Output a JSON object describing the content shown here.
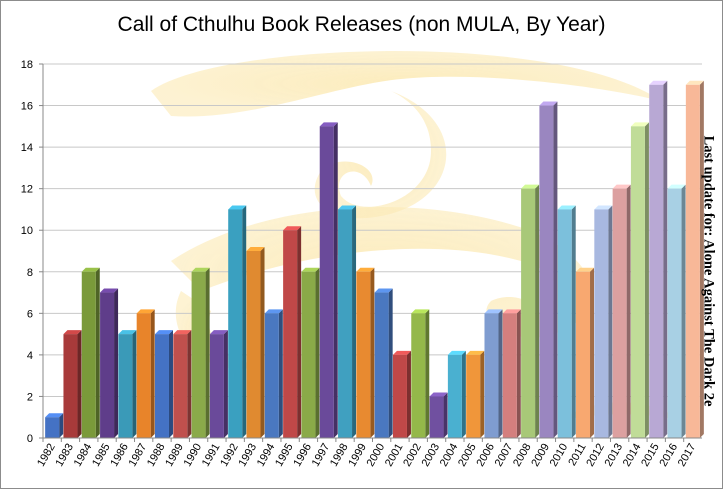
{
  "chart_data": {
    "type": "bar",
    "title": "Call of Cthulhu Book Releases (non MULA, By Year)",
    "note": "Last update for: Alone Against The Dark 2e",
    "xlabel": "",
    "ylabel": "",
    "ylim": [
      0,
      18
    ],
    "yticks": [
      "0",
      "2",
      "4",
      "6",
      "8",
      "10",
      "12",
      "14",
      "16",
      "18"
    ],
    "grid": true,
    "categories": [
      "1982",
      "1983",
      "1984",
      "1985",
      "1986",
      "1987",
      "1988",
      "1989",
      "1990",
      "1991",
      "1992",
      "1993",
      "1994",
      "1995",
      "1996",
      "1997",
      "1998",
      "1999",
      "2000",
      "2001",
      "2002",
      "2003",
      "2004",
      "2005",
      "2006",
      "2007",
      "2008",
      "2009",
      "2010",
      "2011",
      "2012",
      "2013",
      "2014",
      "2015",
      "2016",
      "2017"
    ],
    "values": [
      1,
      5,
      8,
      7,
      5,
      6,
      5,
      5,
      8,
      5,
      11,
      9,
      6,
      10,
      8,
      15,
      11,
      8,
      7,
      4,
      6,
      2,
      4,
      4,
      6,
      6,
      12,
      16,
      11,
      8,
      11,
      12,
      15,
      17,
      12,
      17
    ],
    "colors": [
      "#4472c4",
      "#a83a3a",
      "#7a9a3a",
      "#5f3d8a",
      "#3a9ab8",
      "#e8842a",
      "#4472c4",
      "#c0504d",
      "#8aaa4a",
      "#6a4a9a",
      "#3aa0c0",
      "#e08a30",
      "#4a78c0",
      "#c04848",
      "#8aaa48",
      "#6a4a9a",
      "#40a0c0",
      "#e88a30",
      "#4a78c0",
      "#c04848",
      "#94b84a",
      "#7050a0",
      "#4ab0d0",
      "#f0963a",
      "#7f9cd0",
      "#d47f7e",
      "#a8c878",
      "#9a86c0",
      "#7cc0dc",
      "#f8a870",
      "#a8b8e0",
      "#dca0a0",
      "#c0dc98",
      "#b8a8d4",
      "#a8d0e4",
      "#f8b898"
    ]
  }
}
